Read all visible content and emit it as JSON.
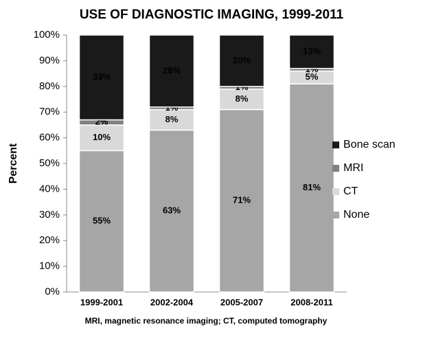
{
  "chart_data": {
    "type": "stacked_bar",
    "title": "USE OF DIAGNOSTIC IMAGING, 1999-2011",
    "ylabel": "Percent",
    "footnote": "MRI, magnetic resonance imaging; CT, computed tomography",
    "categories": [
      "1999-2001",
      "2002-2004",
      "2005-2007",
      "2008-2011"
    ],
    "series": [
      {
        "name": "None",
        "color": "#a6a6a6",
        "values": [
          55,
          63,
          71,
          81
        ],
        "value_labels": [
          "55%",
          "63%",
          "71%",
          "81%"
        ]
      },
      {
        "name": "CT",
        "color": "#d9d9d9",
        "values": [
          10,
          8,
          8,
          5
        ],
        "value_labels": [
          "10%",
          "8%",
          "8%",
          "5%"
        ]
      },
      {
        "name": "MRI",
        "color": "#808080",
        "values": [
          2,
          1,
          1,
          1
        ],
        "value_labels": [
          "2%",
          "1%",
          "1%",
          "1%"
        ]
      },
      {
        "name": "Bone scan",
        "color": "#1a1a1a",
        "values": [
          33,
          28,
          20,
          13
        ],
        "value_labels": [
          "33%",
          "28%",
          "20%",
          "13%"
        ]
      }
    ],
    "ylim": [
      0,
      100
    ],
    "yticks": [
      {
        "value": 0,
        "label": "0%"
      },
      {
        "value": 10,
        "label": "10%"
      },
      {
        "value": 20,
        "label": "20%"
      },
      {
        "value": 30,
        "label": "30%"
      },
      {
        "value": 40,
        "label": "40%"
      },
      {
        "value": 50,
        "label": "50%"
      },
      {
        "value": 60,
        "label": "60%"
      },
      {
        "value": 70,
        "label": "70%"
      },
      {
        "value": 80,
        "label": "80%"
      },
      {
        "value": 90,
        "label": "90%"
      },
      {
        "value": 100,
        "label": "100%"
      }
    ],
    "grid": false,
    "legend": "right"
  }
}
